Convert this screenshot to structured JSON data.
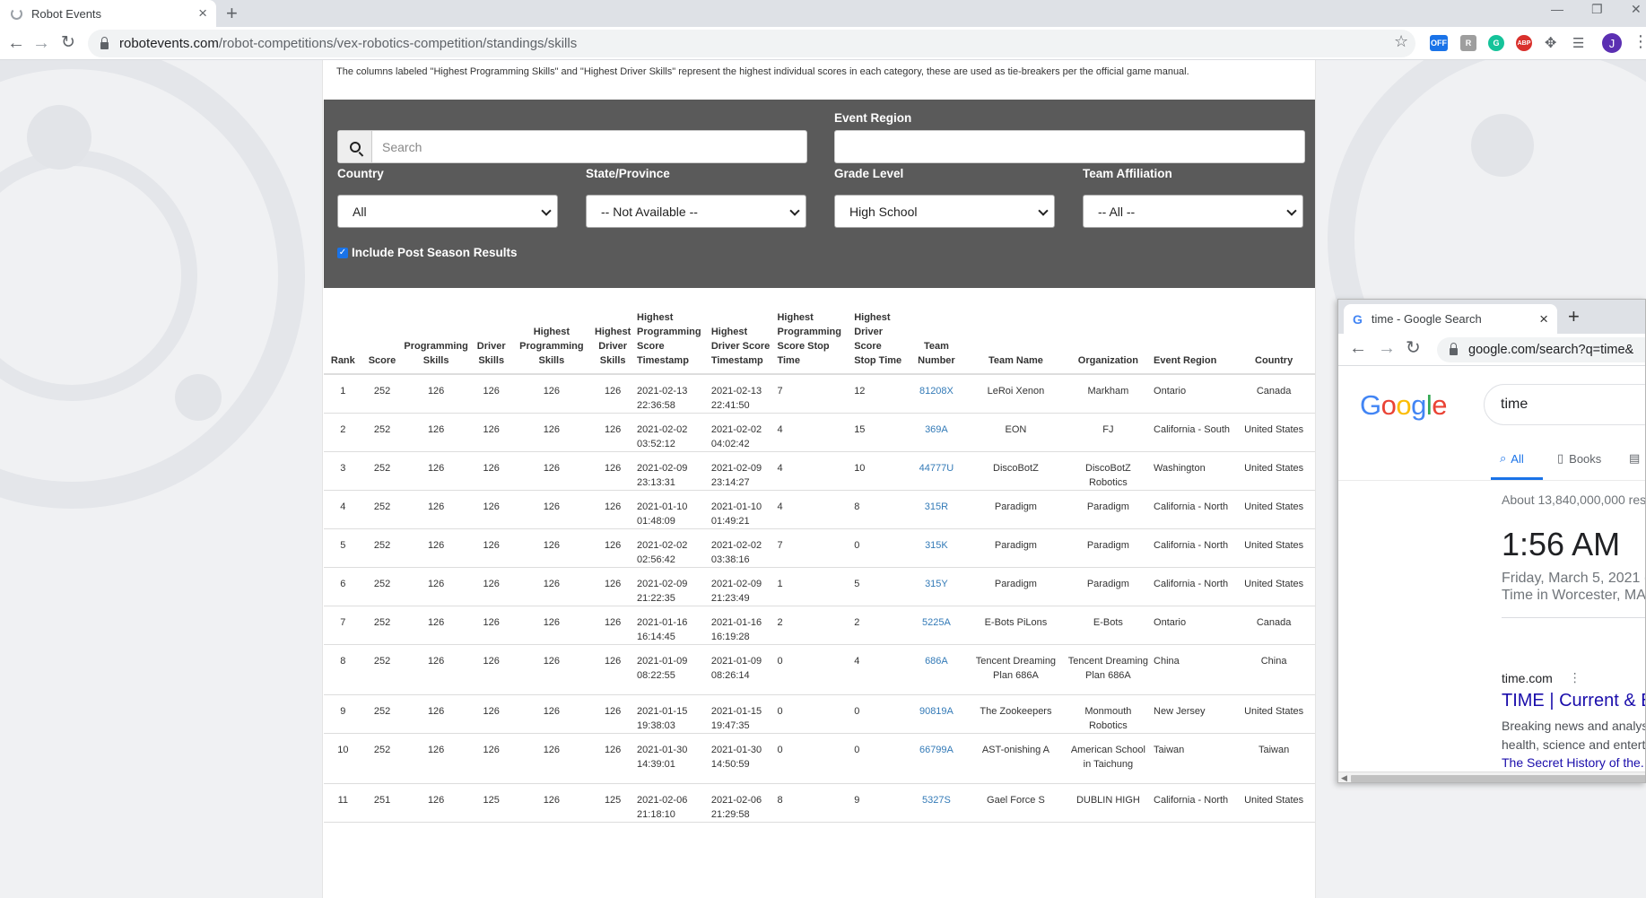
{
  "browser": {
    "tab_title": "Robot Events",
    "url_domain": "robotevents.com",
    "url_path": "/robot-competitions/vex-robotics-competition/standings/skills",
    "ext_off_label": "OFF",
    "ext_abp_label": "ABP",
    "ext_r_label": "R",
    "ext_g_label": "G",
    "avatar_letter": "J"
  },
  "page": {
    "note": "The columns labeled \"Highest Programming Skills\" and \"Highest Driver Skills\" represent the highest individual scores in each category, these are used as tie-breakers per the official game manual.",
    "filters": {
      "search_placeholder": "Search",
      "event_region_label": "Event Region",
      "country_label": "Country",
      "country_value": "All",
      "state_label": "State/Province",
      "state_value": "-- Not Available --",
      "grade_label": "Grade Level",
      "grade_value": "High School",
      "affiliation_label": "Team Affiliation",
      "affiliation_value": "-- All --",
      "post_season_label": "Include Post Season Results"
    },
    "table": {
      "headers": {
        "rank": "Rank",
        "score": "Score",
        "prog": "Programming Skills",
        "driver": "Driver Skills",
        "hprog": "Highest Programming Skills",
        "hdriver": "Highest Driver Skills",
        "hprog_ts": "Highest Programming Score Timestamp",
        "hdriver_ts": "Highest Driver Score Timestamp",
        "hprog_stop": "Highest Programming Score Stop Time",
        "hdriver_stop": "Highest Driver Score Stop Time",
        "team_number": "Team Number",
        "team_name": "Team Name",
        "organization": "Organization",
        "event_region": "Event Region",
        "country": "Country"
      },
      "rows": [
        {
          "rank": "1",
          "score": "252",
          "prog": "126",
          "driver": "126",
          "hprog": "126",
          "hdriver": "126",
          "hprog_ts": "2021-02-13 22:36:58",
          "hdriver_ts": "2021-02-13 22:41:50",
          "hprog_stop": "7",
          "hdriver_stop": "12",
          "team_number": "81208X",
          "team_name": "LeRoi Xenon",
          "organization": "Markham",
          "region": "Ontario",
          "country": "Canada"
        },
        {
          "rank": "2",
          "score": "252",
          "prog": "126",
          "driver": "126",
          "hprog": "126",
          "hdriver": "126",
          "hprog_ts": "2021-02-02 03:52:12",
          "hdriver_ts": "2021-02-02 04:02:42",
          "hprog_stop": "4",
          "hdriver_stop": "15",
          "team_number": "369A",
          "team_name": "EON",
          "organization": "FJ",
          "region": "California - South",
          "country": "United States"
        },
        {
          "rank": "3",
          "score": "252",
          "prog": "126",
          "driver": "126",
          "hprog": "126",
          "hdriver": "126",
          "hprog_ts": "2021-02-09 23:13:31",
          "hdriver_ts": "2021-02-09 23:14:27",
          "hprog_stop": "4",
          "hdriver_stop": "10",
          "team_number": "44777U",
          "team_name": "DiscoBotZ",
          "organization": "DiscoBotZ Robotics",
          "region": "Washington",
          "country": "United States"
        },
        {
          "rank": "4",
          "score": "252",
          "prog": "126",
          "driver": "126",
          "hprog": "126",
          "hdriver": "126",
          "hprog_ts": "2021-01-10 01:48:09",
          "hdriver_ts": "2021-01-10 01:49:21",
          "hprog_stop": "4",
          "hdriver_stop": "8",
          "team_number": "315R",
          "team_name": "Paradigm",
          "organization": "Paradigm",
          "region": "California - North",
          "country": "United States"
        },
        {
          "rank": "5",
          "score": "252",
          "prog": "126",
          "driver": "126",
          "hprog": "126",
          "hdriver": "126",
          "hprog_ts": "2021-02-02 02:56:42",
          "hdriver_ts": "2021-02-02 03:38:16",
          "hprog_stop": "7",
          "hdriver_stop": "0",
          "team_number": "315K",
          "team_name": "Paradigm",
          "organization": "Paradigm",
          "region": "California - North",
          "country": "United States"
        },
        {
          "rank": "6",
          "score": "252",
          "prog": "126",
          "driver": "126",
          "hprog": "126",
          "hdriver": "126",
          "hprog_ts": "2021-02-09 21:22:35",
          "hdriver_ts": "2021-02-09 21:23:49",
          "hprog_stop": "1",
          "hdriver_stop": "5",
          "team_number": "315Y",
          "team_name": "Paradigm",
          "organization": "Paradigm",
          "region": "California - North",
          "country": "United States"
        },
        {
          "rank": "7",
          "score": "252",
          "prog": "126",
          "driver": "126",
          "hprog": "126",
          "hdriver": "126",
          "hprog_ts": "2021-01-16 16:14:45",
          "hdriver_ts": "2021-01-16 16:19:28",
          "hprog_stop": "2",
          "hdriver_stop": "2",
          "team_number": "5225A",
          "team_name": "E-Bots PiLons",
          "organization": "E-Bots",
          "region": "Ontario",
          "country": "Canada"
        },
        {
          "rank": "8",
          "score": "252",
          "prog": "126",
          "driver": "126",
          "hprog": "126",
          "hdriver": "126",
          "hprog_ts": "2021-01-09 08:22:55",
          "hdriver_ts": "2021-01-09 08:26:14",
          "hprog_stop": "0",
          "hdriver_stop": "4",
          "team_number": "686A",
          "team_name": "Tencent Dreaming Plan 686A",
          "organization": "Tencent Dreaming Plan 686A",
          "region": "China",
          "country": "China"
        },
        {
          "rank": "9",
          "score": "252",
          "prog": "126",
          "driver": "126",
          "hprog": "126",
          "hdriver": "126",
          "hprog_ts": "2021-01-15 19:38:03",
          "hdriver_ts": "2021-01-15 19:47:35",
          "hprog_stop": "0",
          "hdriver_stop": "0",
          "team_number": "90819A",
          "team_name": "The Zookeepers",
          "organization": "Monmouth Robotics",
          "region": "New Jersey",
          "country": "United States"
        },
        {
          "rank": "10",
          "score": "252",
          "prog": "126",
          "driver": "126",
          "hprog": "126",
          "hdriver": "126",
          "hprog_ts": "2021-01-30 14:39:01",
          "hdriver_ts": "2021-01-30 14:50:59",
          "hprog_stop": "0",
          "hdriver_stop": "0",
          "team_number": "66799A",
          "team_name": "AST-onishing A",
          "organization": "American School in Taichung",
          "region": "Taiwan",
          "country": "Taiwan"
        },
        {
          "rank": "11",
          "score": "251",
          "prog": "126",
          "driver": "125",
          "hprog": "126",
          "hdriver": "125",
          "hprog_ts": "2021-02-06 21:18:10",
          "hdriver_ts": "2021-02-06 21:29:58",
          "hprog_stop": "8",
          "hdriver_stop": "9",
          "team_number": "5327S",
          "team_name": "Gael Force S",
          "organization": "DUBLIN HIGH",
          "region": "California - North",
          "country": "United States"
        }
      ]
    }
  },
  "google_window": {
    "tab_title": "time - Google Search",
    "url": "google.com/search?q=time&",
    "logo": "Google",
    "query": "time",
    "nav_all": "All",
    "nav_books": "Books",
    "result_stats": "About 13,840,000,000 resu",
    "time": "1:56 AM",
    "date_line": "Friday, March 5, 2021 (",
    "location_line": "Time in Worcester, MA",
    "result_site": "time.com",
    "result_title": "TIME | Current & B",
    "snippet_1": "Breaking news and analys",
    "snippet_2": "health, science and entert",
    "sub_link": "The Secret History of the..."
  },
  "colors": {
    "filter_panel": "#5a5a5a",
    "link": "#337ab7",
    "google_blue": "#4285f4",
    "google_red": "#ea4335",
    "google_yellow": "#fbbc05",
    "google_green": "#34a853"
  },
  "icons": [
    "loading-spinner-icon",
    "close-icon",
    "plus-icon",
    "back-arrow-icon",
    "forward-arrow-icon",
    "reload-icon",
    "lock-icon",
    "star-icon",
    "puzzle-icon",
    "menu-icon",
    "search-icon",
    "chevron-down-icon",
    "checkbox-icon"
  ]
}
